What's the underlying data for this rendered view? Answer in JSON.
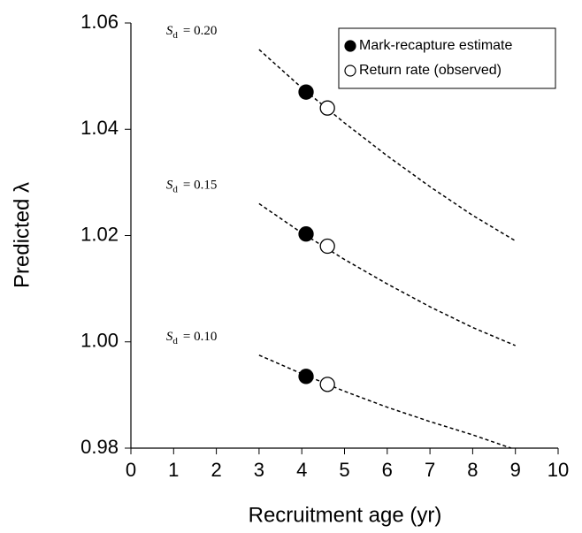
{
  "chart_data": {
    "type": "line",
    "xlabel": "Recruitment age (yr)",
    "ylabel": "Predicted λ",
    "xlim": [
      0,
      10
    ],
    "xticks": [
      0,
      1,
      2,
      3,
      4,
      5,
      6,
      7,
      8,
      9,
      10
    ],
    "ylim": [
      0.98,
      1.06
    ],
    "yticks": [
      0.98,
      {
        "value": 1,
        "label": "1.00"
      },
      1.02,
      1.04,
      1.06
    ],
    "curves": [
      {
        "symbol": "S",
        "sub": "d",
        "text": "= 0.20",
        "color": "#000000",
        "x": [
          3,
          4,
          5,
          6,
          7,
          8,
          9
        ],
        "values": [
          1.055,
          1.0478,
          1.0412,
          1.035,
          1.0292,
          1.0238,
          1.019
        ]
      },
      {
        "symbol": "S",
        "sub": "d",
        "text": "= 0.15",
        "color": "#000000",
        "x": [
          3,
          4,
          5,
          6,
          7,
          8,
          9
        ],
        "values": [
          1.026,
          1.0205,
          1.0155,
          1.0109,
          1.0066,
          1.0027,
          0.9993
        ]
      },
      {
        "symbol": "S",
        "sub": "d",
        "text": "= 0.10",
        "color": "#000000",
        "x": [
          3,
          4,
          5,
          6,
          7,
          8,
          8.9
        ],
        "values": [
          0.9975,
          0.994,
          0.9907,
          0.9877,
          0.985,
          0.9825,
          0.98
        ]
      }
    ],
    "series": [
      {
        "name": "Mark-recapture estimate",
        "color": "#000000",
        "filled": true,
        "x": [
          4.1,
          4.1,
          4.1
        ],
        "values": [
          1.047,
          1.0203,
          0.9935
        ]
      },
      {
        "name": "Return rate (observed)",
        "color": "#000000",
        "filled": false,
        "x": [
          4.6,
          4.6,
          4.6
        ],
        "values": [
          1.044,
          1.018,
          0.992
        ]
      }
    ],
    "legend": "upper right"
  }
}
